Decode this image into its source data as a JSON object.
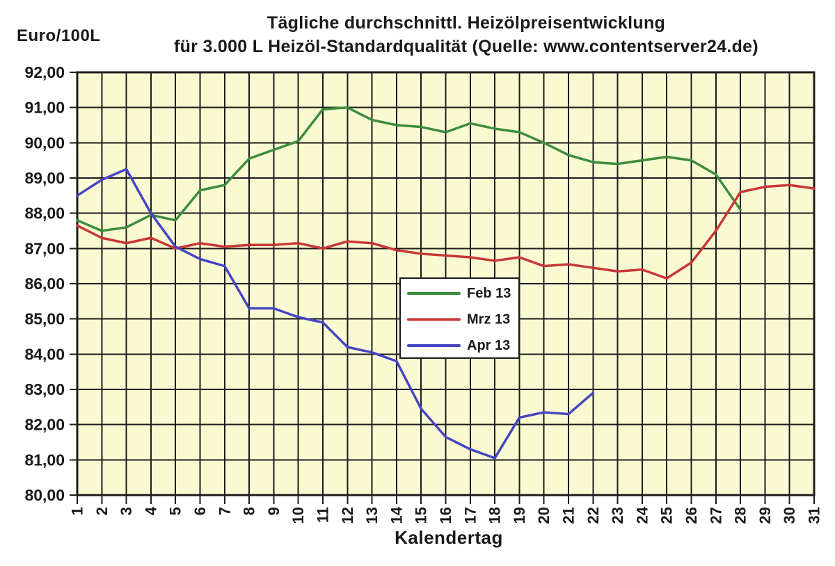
{
  "chart_data": {
    "type": "line",
    "title": "Tägliche durchschnittl. Heizölpreisentwicklung für 3.000 L Heizöl-Standardqualität (Quelle: www.contentserver24.de)",
    "title_line1": "Tägliche durchschnittl. Heizölpreisentwicklung",
    "title_line2": "für 3.000 L Heizöl-Standardqualität (Quelle: www.contentserver24.de)",
    "ylabel_display": "Euro/100L",
    "xlabel": "Kalendertag",
    "x_ticks": [
      1,
      2,
      3,
      4,
      5,
      6,
      7,
      8,
      9,
      10,
      11,
      12,
      13,
      14,
      15,
      16,
      17,
      18,
      19,
      20,
      21,
      22,
      23,
      24,
      25,
      26,
      27,
      28,
      29,
      30,
      31
    ],
    "ylim": [
      80,
      92
    ],
    "y_tick_step": 1,
    "y_tick_decimal_separator": ",",
    "grid": true,
    "plot_background": "#fafad2",
    "grid_color": "#1c1c1c",
    "legend_position": "center-inside",
    "series": [
      {
        "name": "Feb 13",
        "color": "#3c8c3c",
        "start_x": 1,
        "values": [
          87.8,
          87.5,
          87.6,
          87.95,
          87.8,
          88.65,
          88.8,
          89.55,
          89.8,
          90.05,
          90.95,
          91.0,
          90.65,
          90.5,
          90.45,
          90.3,
          90.55,
          90.4,
          90.3,
          90.0,
          89.65,
          89.45,
          89.4,
          89.5,
          89.6,
          89.5,
          89.1,
          88.1
        ]
      },
      {
        "name": "Mrz 13",
        "color": "#c93636",
        "start_x": 1,
        "values": [
          87.65,
          87.3,
          87.15,
          87.3,
          87.0,
          87.15,
          87.05,
          87.1,
          87.1,
          87.15,
          87.0,
          87.2,
          87.15,
          86.95,
          86.85,
          86.8,
          86.75,
          86.65,
          86.75,
          86.5,
          86.55,
          86.45,
          86.35,
          86.4,
          86.15,
          86.6,
          87.5,
          88.6,
          88.75,
          88.8,
          88.7
        ]
      },
      {
        "name": "Apr 13",
        "color": "#4545c4",
        "start_x": 1,
        "values": [
          88.5,
          88.95,
          89.25,
          88.0,
          87.05,
          86.7,
          86.5,
          85.3,
          85.3,
          85.05,
          84.9,
          84.2,
          84.05,
          83.8,
          82.45,
          81.65,
          81.3,
          81.05,
          82.2,
          82.35,
          82.3,
          82.9
        ]
      }
    ]
  }
}
